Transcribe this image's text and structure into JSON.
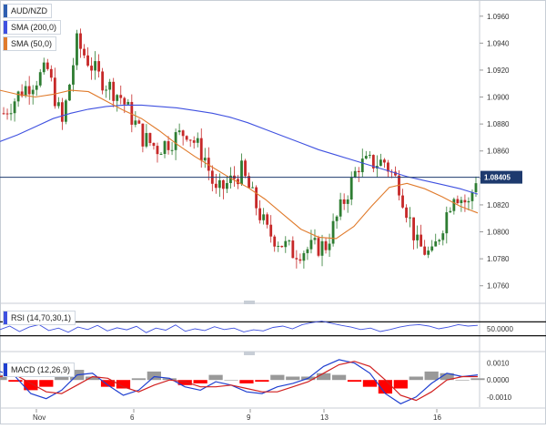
{
  "colors": {
    "price_up": "#2e7d32",
    "price_down": "#c62828",
    "sma200": "#3f51e0",
    "sma50": "#e07b2c",
    "rsi": "#3f51e0",
    "macd": "#1f3fd0",
    "signal": "#d11f1f",
    "hist_pos": "#999999",
    "hist_neg": "#ff0000",
    "last_price_bg": "#1e3a6e"
  },
  "chart_data": [
    {
      "type": "candlestick",
      "title": "AUD/NZD",
      "y_ticks": [
        "1.0960",
        "1.0940",
        "1.0920",
        "1.0900",
        "1.0880",
        "1.0860",
        "1.0840",
        "1.0820",
        "1.0800",
        "1.0780",
        "1.0760"
      ],
      "ylim": [
        1.0749,
        1.0972
      ],
      "x_ticks": [
        "Nov",
        "6",
        "9",
        "13",
        "16"
      ],
      "last_price": "1.08405",
      "indicators": [
        {
          "name": "SMA (200,0)",
          "color_key": "sma200"
        },
        {
          "name": "SMA (50,0)",
          "color_key": "sma50"
        }
      ],
      "sma200_values": [
        1.0867,
        1.0872,
        1.0878,
        1.0884,
        1.0888,
        1.0891,
        1.0893,
        1.0894,
        1.0894,
        1.0893,
        1.0892,
        1.089,
        1.0888,
        1.0885,
        1.0881,
        1.0876,
        1.0871,
        1.0866,
        1.0861,
        1.0857,
        1.0853,
        1.0849,
        1.0845,
        1.0841,
        1.0838,
        1.0835,
        1.0832,
        1.0828
      ],
      "sma50_values": [
        1.0905,
        1.0902,
        1.09,
        1.0902,
        1.0905,
        1.0904,
        1.0897,
        1.089,
        1.0884,
        1.0875,
        1.0865,
        1.0856,
        1.0848,
        1.084,
        1.0833,
        1.0824,
        1.0813,
        1.0802,
        1.0796,
        1.0795,
        1.0804,
        1.0819,
        1.0833,
        1.0836,
        1.0832,
        1.0826,
        1.0819,
        1.0814
      ]
    },
    {
      "type": "line",
      "title": "RSI (14,70,30,1)",
      "y_ticks": [
        "50.0000"
      ],
      "ylim": [
        0,
        100
      ],
      "levels": [
        70,
        30
      ],
      "values": [
        48,
        58,
        42,
        55,
        62,
        45,
        52,
        40,
        55,
        48,
        60,
        44,
        53,
        47,
        57,
        39,
        52,
        46,
        61,
        43,
        50,
        45,
        56,
        48,
        52,
        41,
        47,
        44,
        54,
        58,
        50,
        62,
        68,
        72,
        66,
        60,
        55,
        48,
        52,
        42,
        48,
        55,
        60,
        62,
        58,
        50,
        55,
        62,
        58,
        60
      ]
    },
    {
      "type": "bar+line",
      "title": "MACD (12,26,9)",
      "y_ticks": [
        "0.0010",
        "0.0000",
        "-0.0010"
      ],
      "ylim": [
        -0.0016,
        0.0013
      ],
      "macd_values": [
        0.0005,
        0.0002,
        -0.0008,
        -0.0011,
        -0.0006,
        0.0003,
        0.0004,
        -0.0003,
        -0.0009,
        -0.0006,
        0.0002,
        0.0001,
        -0.0004,
        -0.0006,
        -0.0001,
        -0.0003,
        -0.0007,
        -0.0008,
        -0.0004,
        -0.0002,
        0.0001,
        0.0008,
        0.0012,
        0.001,
        0.0004,
        -0.0008,
        -0.0014,
        -0.001,
        -0.0002,
        0.0004,
        0.0002,
        0.0003
      ],
      "signal_values": [
        0.0002,
        0.0003,
        -0.0002,
        -0.0007,
        -0.0008,
        -0.0003,
        0.0002,
        0.0001,
        -0.0004,
        -0.0007,
        -0.0003,
        0.0,
        -0.0001,
        -0.0004,
        -0.0004,
        -0.0003,
        -0.0005,
        -0.0007,
        -0.0007,
        -0.0004,
        -0.0001,
        0.0004,
        0.0009,
        0.0011,
        0.0008,
        0.0,
        -0.0009,
        -0.0012,
        -0.0007,
        0.0,
        0.0002,
        0.0002
      ]
    }
  ]
}
